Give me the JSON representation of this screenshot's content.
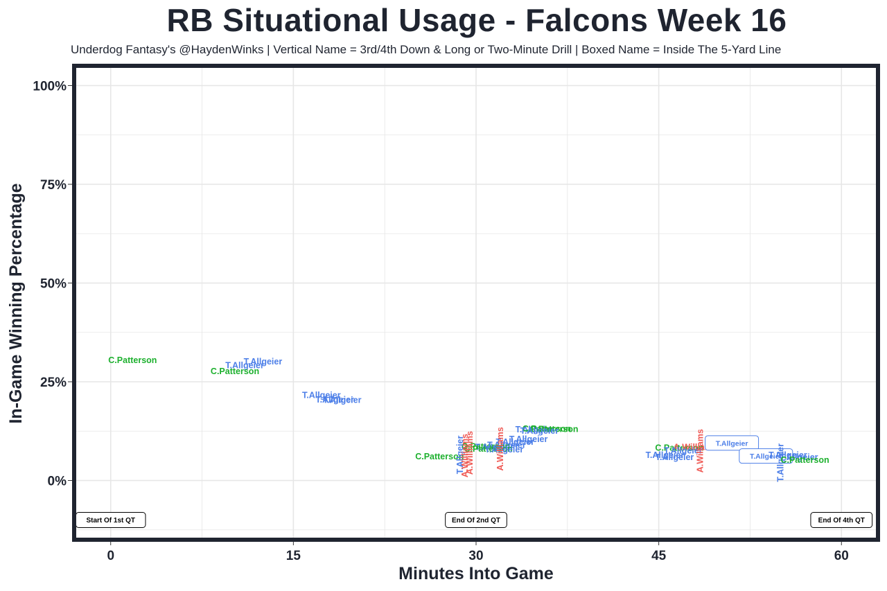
{
  "colors": {
    "T.Allgeier": "#4d7fe8",
    "C.Patterson": "#1db02e",
    "A.Williams": "#ef5a55",
    "frame": "#1f2430",
    "grid": "#e6e6e6"
  },
  "chart_data": {
    "type": "scatter",
    "title": "RB Situational Usage - Falcons Week 16",
    "subtitle": "Underdog Fantasy's @HaydenWinks | Vertical Name = 3rd/4th Down & Long or Two-Minute Drill | Boxed Name = Inside The 5-Yard Line",
    "xlabel": "Minutes Into Game",
    "ylabel": "In-Game Winning Percentage",
    "xlim": [
      -3,
      63
    ],
    "ylim": [
      -15,
      105
    ],
    "xticks": [
      0,
      15,
      30,
      45,
      60
    ],
    "xtick_labels": [
      "0",
      "15",
      "30",
      "45",
      "60"
    ],
    "yticks": [
      0,
      25,
      50,
      75,
      100
    ],
    "ytick_labels": [
      "0%",
      "25%",
      "50%",
      "75%",
      "100%"
    ],
    "grid": true,
    "annotations": [
      {
        "text": "Start Of 1st QT",
        "x": 0,
        "y": -10
      },
      {
        "text": "End Of 2nd QT",
        "x": 30,
        "y": -10
      },
      {
        "text": "End Of 4th QT",
        "x": 60,
        "y": -10
      }
    ],
    "points": [
      {
        "player": "C.Patterson",
        "x": 1.8,
        "y": 30.5,
        "style": "normal"
      },
      {
        "player": "T.Allgeier",
        "x": 12.5,
        "y": 30.2,
        "style": "normal"
      },
      {
        "player": "T.Allgeier",
        "x": 11.0,
        "y": 29.2,
        "style": "normal"
      },
      {
        "player": "C.Patterson",
        "x": 10.2,
        "y": 27.7,
        "style": "normal"
      },
      {
        "player": "T.Allgeier",
        "x": 17.3,
        "y": 21.7,
        "style": "normal"
      },
      {
        "player": "T.Allgeier",
        "x": 18.4,
        "y": 20.5,
        "style": "normal"
      },
      {
        "player": "T.Allgeier",
        "x": 19.0,
        "y": 20.4,
        "style": "normal"
      },
      {
        "player": "T.Allgeier",
        "x": 34.8,
        "y": 13.0,
        "style": "normal"
      },
      {
        "player": "C.Patterson",
        "x": 35.8,
        "y": 13.2,
        "style": "normal"
      },
      {
        "player": "C.Patterson",
        "x": 36.4,
        "y": 13.1,
        "style": "normal"
      },
      {
        "player": "T.Allgeier",
        "x": 35.2,
        "y": 12.6,
        "style": "normal"
      },
      {
        "player": "T.Allgeier",
        "x": 34.3,
        "y": 10.5,
        "style": "normal"
      },
      {
        "player": "T.Allgeier",
        "x": 33.2,
        "y": 9.8,
        "style": "normal"
      },
      {
        "player": "T.Allgeier",
        "x": 32.5,
        "y": 9.0,
        "style": "normal"
      },
      {
        "player": "C.Patterson",
        "x": 30.8,
        "y": 8.7,
        "style": "normal"
      },
      {
        "player": "T.Allgeier",
        "x": 31.5,
        "y": 8.5,
        "style": "normal"
      },
      {
        "player": "C.Patterson",
        "x": 31.0,
        "y": 8.1,
        "style": "normal"
      },
      {
        "player": "T.Allgeier",
        "x": 32.3,
        "y": 7.9,
        "style": "normal"
      },
      {
        "player": "C.Patterson",
        "x": 27.0,
        "y": 6.1,
        "style": "normal"
      },
      {
        "player": "T.Allgeier",
        "x": 28.7,
        "y": 6.5,
        "style": "vertical"
      },
      {
        "player": "A.Williams",
        "x": 29.1,
        "y": 6.3,
        "style": "vertical"
      },
      {
        "player": "A.Williams",
        "x": 29.5,
        "y": 7.0,
        "style": "vertical"
      },
      {
        "player": "A.Williams",
        "x": 32.0,
        "y": 8.0,
        "style": "vertical"
      },
      {
        "player": "C.Patterson",
        "x": 46.7,
        "y": 8.3,
        "style": "normal"
      },
      {
        "player": "A.Williams",
        "x": 48.0,
        "y": 8.5,
        "style": "normal"
      },
      {
        "player": "T.Allgeier",
        "x": 47.0,
        "y": 7.6,
        "style": "normal"
      },
      {
        "player": "T.Allgeier",
        "x": 45.5,
        "y": 6.5,
        "style": "normal"
      },
      {
        "player": "T.Allgeier",
        "x": 46.3,
        "y": 6.0,
        "style": "normal"
      },
      {
        "player": "A.Williams",
        "x": 48.4,
        "y": 7.5,
        "style": "vertical"
      },
      {
        "player": "T.Allgeier",
        "x": 51.0,
        "y": 9.5,
        "style": "boxed"
      },
      {
        "player": "T.Allgeier",
        "x": 53.8,
        "y": 6.2,
        "style": "boxed"
      },
      {
        "player": "T.Allgeier",
        "x": 55.0,
        "y": 4.5,
        "style": "vertical"
      },
      {
        "player": "T.Allgeier",
        "x": 55.6,
        "y": 6.5,
        "style": "normal"
      },
      {
        "player": "T.Allgeier",
        "x": 56.5,
        "y": 6.0,
        "style": "normal"
      },
      {
        "player": "C.Patterson",
        "x": 57.0,
        "y": 5.3,
        "style": "normal"
      }
    ]
  }
}
